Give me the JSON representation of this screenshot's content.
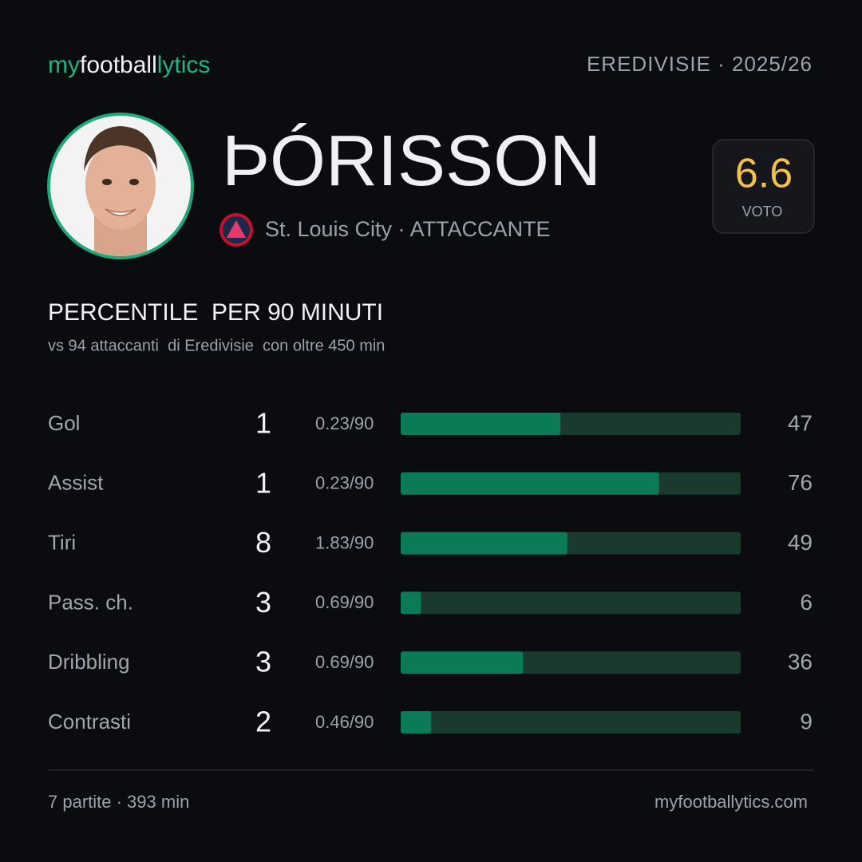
{
  "header": {
    "brand": [
      "my",
      "football",
      "lytics"
    ],
    "league": "EREDIVISIE · 2025/26"
  },
  "player": {
    "name": "ÞÓRISSON",
    "team": "St. Louis City · ATTACCANTE",
    "rating": 6.6,
    "rating_label": "VOTO"
  },
  "section": {
    "title": "PERCENTILE  PER 90 MINUTI",
    "subtitle": "vs 94 attaccanti  di Eredivisie  con oltre 450 min"
  },
  "stats": {
    "xlim": [
      0,
      100
    ],
    "rows": [
      {
        "label": "Gol",
        "total": 1,
        "per90": "0.23/90",
        "percentile": 47
      },
      {
        "label": "Assist",
        "total": 1,
        "per90": "0.23/90",
        "percentile": 76
      },
      {
        "label": "Tiri",
        "total": 8,
        "per90": "1.83/90",
        "percentile": 49
      },
      {
        "label": "Pass. ch.",
        "total": 3,
        "per90": "0.69/90",
        "percentile": 6
      },
      {
        "label": "Dribbling",
        "total": 3,
        "per90": "0.69/90",
        "percentile": 36
      },
      {
        "label": "Contrasti",
        "total": 2,
        "per90": "0.46/90",
        "percentile": 9
      }
    ]
  },
  "footer": {
    "left": "7 partite · 393 min",
    "right": "myfootballytics.com"
  }
}
